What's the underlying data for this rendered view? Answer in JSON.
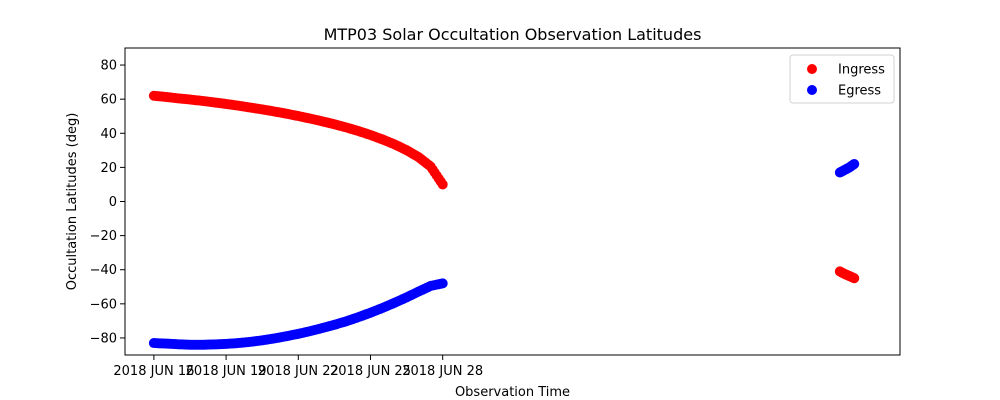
{
  "chart_data": {
    "type": "scatter",
    "title": "MTP03 Solar Occultation Observation Latitudes",
    "xlabel": "Observation Time",
    "ylabel": "Occultation Latitudes (deg)",
    "ylim": [
      -90,
      90
    ],
    "xlim_days": [
      14.8,
      47.0
    ],
    "x_unit": "days since 2018 JUN 1",
    "yticks": [
      -80,
      -60,
      -40,
      -20,
      0,
      20,
      40,
      60,
      80
    ],
    "xticks": [
      {
        "day": 16,
        "label": "2018 JUN 16"
      },
      {
        "day": 19,
        "label": "2018 JUN 19"
      },
      {
        "day": 22,
        "label": "2018 JUN 22"
      },
      {
        "day": 25,
        "label": "2018 JUN 25"
      },
      {
        "day": 28,
        "label": "2018 JUN 28"
      }
    ],
    "legend_position": "top-right",
    "series": [
      {
        "name": "Ingress",
        "color": "#ff0000",
        "points": [
          [
            16.0,
            62.0
          ],
          [
            16.5,
            61.3
          ],
          [
            17.0,
            60.5
          ],
          [
            17.5,
            59.8
          ],
          [
            18.0,
            59.0
          ],
          [
            18.5,
            58.1
          ],
          [
            19.0,
            57.2
          ],
          [
            19.5,
            56.2
          ],
          [
            20.0,
            55.1
          ],
          [
            20.5,
            54.0
          ],
          [
            21.0,
            52.8
          ],
          [
            21.5,
            51.5
          ],
          [
            22.0,
            50.1
          ],
          [
            22.5,
            48.6
          ],
          [
            23.0,
            47.0
          ],
          [
            23.5,
            45.3
          ],
          [
            24.0,
            43.4
          ],
          [
            24.5,
            41.3
          ],
          [
            25.0,
            39.0
          ],
          [
            25.5,
            36.4
          ],
          [
            26.0,
            33.5
          ],
          [
            26.5,
            30.1
          ],
          [
            27.0,
            26.0
          ],
          [
            27.5,
            20.5
          ],
          [
            28.0,
            10.0
          ],
          [
            44.5,
            -41.0
          ],
          [
            44.7,
            -42.5
          ],
          [
            44.9,
            -43.7
          ],
          [
            45.1,
            -45.0
          ]
        ]
      },
      {
        "name": "Egress",
        "color": "#0000ff",
        "points": [
          [
            16.0,
            -83.0
          ],
          [
            16.5,
            -83.3
          ],
          [
            17.0,
            -83.7
          ],
          [
            17.5,
            -84.0
          ],
          [
            18.0,
            -84.0
          ],
          [
            18.5,
            -83.8
          ],
          [
            19.0,
            -83.5
          ],
          [
            19.5,
            -83.0
          ],
          [
            20.0,
            -82.3
          ],
          [
            20.5,
            -81.4
          ],
          [
            21.0,
            -80.3
          ],
          [
            21.5,
            -79.0
          ],
          [
            22.0,
            -77.6
          ],
          [
            22.5,
            -76.0
          ],
          [
            23.0,
            -74.2
          ],
          [
            23.5,
            -72.3
          ],
          [
            24.0,
            -70.2
          ],
          [
            24.5,
            -67.8
          ],
          [
            25.0,
            -65.2
          ],
          [
            25.5,
            -62.4
          ],
          [
            26.0,
            -59.4
          ],
          [
            26.5,
            -56.2
          ],
          [
            27.0,
            -52.8
          ],
          [
            27.5,
            -49.5
          ],
          [
            28.0,
            -48.0
          ],
          [
            44.5,
            17.0
          ],
          [
            44.7,
            18.5
          ],
          [
            44.9,
            20.0
          ],
          [
            45.1,
            22.0
          ]
        ]
      }
    ]
  }
}
